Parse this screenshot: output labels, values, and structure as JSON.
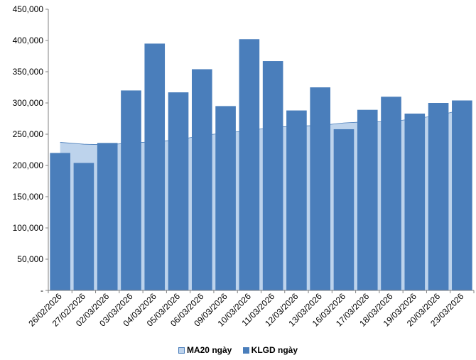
{
  "chart_data": {
    "type": "bar",
    "title": "",
    "xlabel": "",
    "ylabel": "",
    "ylim": [
      0,
      450000
    ],
    "yticks": [
      0,
      50000,
      100000,
      150000,
      200000,
      250000,
      300000,
      350000,
      400000,
      450000
    ],
    "ytick_labels": [
      "-",
      "50,000",
      "100,000",
      "150,000",
      "200,000",
      "250,000",
      "300,000",
      "350,000",
      "400,000",
      "450,000"
    ],
    "grid": false,
    "legend_position": "bottom",
    "categories": [
      "26/02/2026",
      "27/02/2026",
      "02/03/2026",
      "03/03/2026",
      "04/03/2026",
      "05/03/2026",
      "06/03/2026",
      "09/03/2026",
      "10/03/2026",
      "11/03/2026",
      "12/03/2026",
      "13/03/2026",
      "16/03/2026",
      "17/03/2026",
      "18/03/2026",
      "19/03/2026",
      "20/03/2026",
      "23/03/2026"
    ],
    "series": [
      {
        "name": "MA20 ngày",
        "kind": "area",
        "color": "#bdd3ec",
        "values": [
          237000,
          234000,
          233000,
          236000,
          238000,
          241000,
          248000,
          252000,
          256000,
          261000,
          263000,
          264000,
          268000,
          270000,
          270000,
          275000,
          280000,
          289000
        ]
      },
      {
        "name": "KLGD ngày",
        "kind": "bar",
        "color": "#4a7ebb",
        "values": [
          220000,
          204000,
          236000,
          320000,
          395000,
          317000,
          354000,
          295000,
          402000,
          367000,
          288000,
          325000,
          258000,
          289000,
          310000,
          283000,
          300000,
          304000
        ]
      }
    ]
  }
}
